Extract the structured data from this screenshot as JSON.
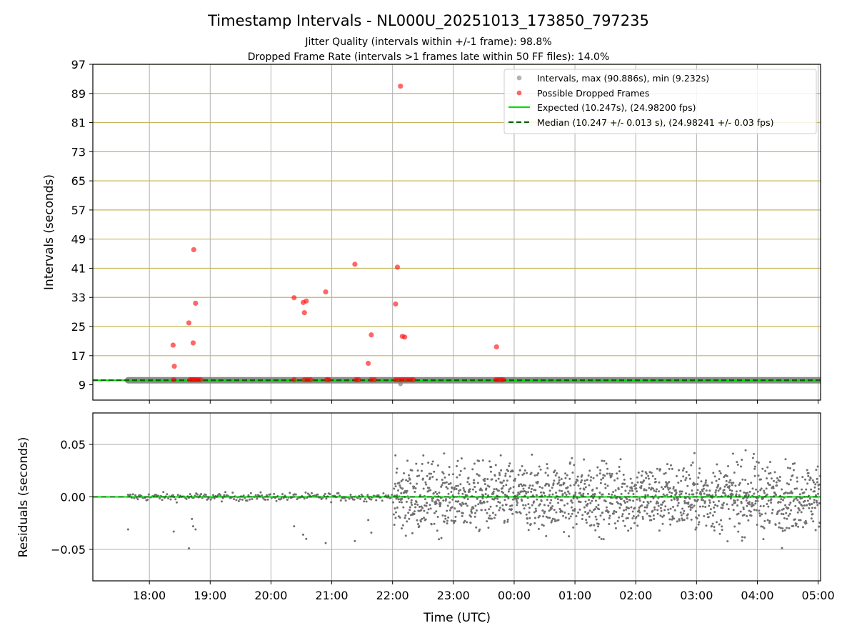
{
  "chart_data": [
    {
      "type": "scatter",
      "title": "Timestamp Intervals - NL000U_20251013_173850_797235",
      "subtitle_lines": [
        "Jitter Quality (intervals within +/-1 frame): 98.8%",
        "Dropped Frame Rate (intervals >1 frames late within 50 FF files): 14.0%"
      ],
      "ylabel": "Intervals (seconds)",
      "xlabel": "",
      "x_unit": "hours since 17:00 UTC",
      "xlim": [
        0.07,
        12.04
      ],
      "ylim": [
        4.8,
        97
      ],
      "y_ticks": [
        9,
        17,
        25,
        33,
        41,
        49,
        57,
        65,
        73,
        81,
        89,
        97
      ],
      "y_tick_labels": [
        "9",
        "17",
        "25",
        "33",
        "41",
        "49",
        "57",
        "65",
        "73",
        "81",
        "89",
        "97"
      ],
      "horizontal_reference_lines": [
        17,
        25,
        33,
        41,
        49,
        57,
        65,
        73,
        81,
        89,
        97
      ],
      "vertical_grid": true,
      "legend_position": "top-right",
      "legend": [
        "Intervals, max (90.886s), min (9.232s)",
        "Possible Dropped Frames",
        "Expected (10.247s), (24.98200 fps)",
        "Median (10.247 +/- 0.013 s), (24.98241 +/- 0.03 fps)"
      ],
      "colors": {
        "intervals": "#808080",
        "dropped": "#ff0000",
        "expected": "#00e000",
        "median": "#006400",
        "ref_lines": "#c8b45a",
        "grid": "#b0b0b0"
      },
      "intervals_band": {
        "x_start": 0.65,
        "x_end": 12.04,
        "value": 10.247
      },
      "intervals_outliers": [
        [
          5.13,
          9.23
        ]
      ],
      "expected_value": 10.247,
      "median_value": 10.247,
      "dropped_frames": [
        [
          1.39,
          19.9
        ],
        [
          1.41,
          14.1
        ],
        [
          1.65,
          26.0
        ],
        [
          1.72,
          20.5
        ],
        [
          1.73,
          46.1
        ],
        [
          1.76,
          31.4
        ],
        [
          3.38,
          32.9
        ],
        [
          3.53,
          31.6
        ],
        [
          3.55,
          28.8
        ],
        [
          3.58,
          32.0
        ],
        [
          3.9,
          34.5
        ],
        [
          4.38,
          42.1
        ],
        [
          4.6,
          14.9
        ],
        [
          4.65,
          22.7
        ],
        [
          5.05,
          31.2
        ],
        [
          5.08,
          41.3
        ],
        [
          5.13,
          91.0
        ],
        [
          5.16,
          22.3
        ],
        [
          5.2,
          22.1
        ],
        [
          6.71,
          19.4
        ]
      ],
      "dropped_frame_baseline": {
        "value": 10.4,
        "x": [
          1.4,
          1.67,
          1.7,
          1.73,
          1.76,
          1.8,
          1.84,
          3.38,
          3.55,
          3.6,
          3.65,
          3.92,
          3.95,
          4.4,
          4.44,
          4.65,
          4.7,
          5.05,
          5.1,
          5.15,
          5.2,
          5.25,
          5.3,
          5.34,
          6.7,
          6.74,
          6.78,
          6.82
        ]
      }
    },
    {
      "type": "scatter",
      "title": "",
      "xlabel": "Time (UTC)",
      "ylabel": "Residuals (seconds)",
      "x_unit": "hours since 17:00 UTC",
      "xlim": [
        0.07,
        12.04
      ],
      "ylim": [
        -0.08,
        0.08
      ],
      "y_ticks": [
        0.05,
        0.0,
        -0.05
      ],
      "y_tick_labels": [
        "0.05",
        "0.00",
        "−0.05"
      ],
      "x_ticks": [
        1,
        2,
        3,
        4,
        5,
        6,
        7,
        8,
        9,
        10,
        11,
        12
      ],
      "x_tick_labels": [
        "18:00",
        "19:00",
        "20:00",
        "21:00",
        "22:00",
        "23:00",
        "00:00",
        "01:00",
        "02:00",
        "03:00",
        "04:00",
        "05:00"
      ],
      "grid": true,
      "zero_line": 0,
      "zero_line_color": "#00e000",
      "point_color": "#707070",
      "segments": [
        {
          "x_start": 0.65,
          "x_end": 5.02,
          "step": 0.02,
          "spread": 0.002
        },
        {
          "x_start": 5.02,
          "x_end": 12.04,
          "step": 0.0045,
          "spread": 0.016
        }
      ],
      "outliers": [
        [
          0.65,
          -0.031
        ],
        [
          1.4,
          -0.033
        ],
        [
          1.65,
          -0.049
        ],
        [
          1.72,
          -0.028
        ],
        [
          1.76,
          -0.031
        ],
        [
          1.7,
          -0.021
        ],
        [
          3.38,
          -0.028
        ],
        [
          3.53,
          -0.036
        ],
        [
          3.58,
          -0.04
        ],
        [
          3.9,
          -0.044
        ],
        [
          4.38,
          -0.042
        ],
        [
          4.6,
          -0.022
        ],
        [
          4.65,
          -0.034
        ],
        [
          5.05,
          -0.02
        ],
        [
          5.15,
          -0.03
        ]
      ]
    }
  ]
}
